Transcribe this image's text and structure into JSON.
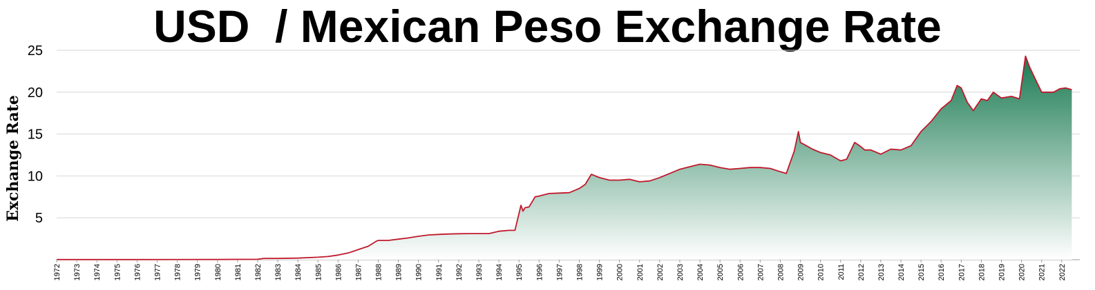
{
  "chart_data": {
    "type": "area",
    "title": "USD  / Mexican Peso Exchange Rate",
    "ylabel": "Exchange Rate",
    "xlabel": "",
    "ylim": [
      0,
      25
    ],
    "yticks": [
      5,
      10,
      15,
      20,
      25
    ],
    "grid": true,
    "colors": {
      "line": "#c0182b",
      "fill_top": "#1a7a52",
      "fill_bottom": "#ffffff"
    },
    "x_tick_labels": [
      "1972",
      "1973",
      "1974",
      "1975",
      "1976",
      "1977",
      "1978",
      "1979",
      "1980",
      "1981",
      "1982",
      "1983",
      "1984",
      "1985",
      "1986",
      "1987",
      "1988",
      "1989",
      "1990",
      "1991",
      "1992",
      "1993",
      "1994",
      "1995",
      "1996",
      "1997",
      "1998",
      "1999",
      "2000",
      "2001",
      "2002",
      "2003",
      "2004",
      "2005",
      "2006",
      "2007",
      "2008",
      "2009",
      "2010",
      "2011",
      "2012",
      "2013",
      "2014",
      "2015",
      "2016",
      "2017",
      "2018",
      "2019",
      "2020",
      "2021",
      "2022"
    ],
    "series": [
      {
        "x": [
          1972,
          1976,
          1980,
          1982,
          1982.3,
          1983,
          1984,
          1985,
          1985.5,
          1986,
          1986.5,
          1987,
          1987.5,
          1987.9,
          1988,
          1988.5,
          1989,
          1989.5,
          1990,
          1990.5,
          1991,
          1991.5,
          1992,
          1992.5,
          1993,
          1993.5,
          1994,
          1994.5,
          1994.8,
          1995,
          1995.1,
          1995.2,
          1995.3,
          1995.5,
          1995.8,
          1996,
          1996.5,
          1997,
          1997.5,
          1998,
          1998.3,
          1998.6,
          1999,
          1999.5,
          2000,
          2000.5,
          2001,
          2001.5,
          2002,
          2002.5,
          2003,
          2003.5,
          2004,
          2004.5,
          2005,
          2005.5,
          2006,
          2006.5,
          2007,
          2007.5,
          2008,
          2008.3,
          2008.7,
          2008.9,
          2009,
          2009.3,
          2009.6,
          2010,
          2010.5,
          2011,
          2011.3,
          2011.7,
          2012,
          2012.2,
          2012.5,
          2013,
          2013.5,
          2014,
          2014.5,
          2015,
          2015.5,
          2016,
          2016.5,
          2016.8,
          2017,
          2017.3,
          2017.6,
          2018,
          2018.3,
          2018.6,
          2019,
          2019.5,
          2019.9,
          2020.2,
          2020.4,
          2020.7,
          2021,
          2021.3,
          2021.6,
          2021.9,
          2022.2,
          2022.5
        ],
        "values": [
          0.0125,
          0.0154,
          0.023,
          0.05,
          0.15,
          0.15,
          0.19,
          0.3,
          0.38,
          0.55,
          0.8,
          1.2,
          1.6,
          2.2,
          2.3,
          2.3,
          2.45,
          2.6,
          2.8,
          2.95,
          3.02,
          3.07,
          3.1,
          3.12,
          3.12,
          3.12,
          3.4,
          3.5,
          3.5,
          5.5,
          6.5,
          5.8,
          6.2,
          6.3,
          7.5,
          7.6,
          7.9,
          7.95,
          8.0,
          8.5,
          9.0,
          10.2,
          9.8,
          9.5,
          9.5,
          9.6,
          9.3,
          9.4,
          9.8,
          10.3,
          10.8,
          11.1,
          11.4,
          11.3,
          11.0,
          10.8,
          10.9,
          11.0,
          11.0,
          10.9,
          10.5,
          10.3,
          13.0,
          15.3,
          14.0,
          13.6,
          13.2,
          12.8,
          12.5,
          11.8,
          12.0,
          14.0,
          13.5,
          13.1,
          13.1,
          12.6,
          13.2,
          13.1,
          13.6,
          15.3,
          16.5,
          18.0,
          19.0,
          20.8,
          20.5,
          18.8,
          17.8,
          19.2,
          19.0,
          20.0,
          19.3,
          19.5,
          19.2,
          24.3,
          23.0,
          21.5,
          20.0,
          20.0,
          20.0,
          20.4,
          20.5,
          20.3
        ]
      }
    ]
  }
}
